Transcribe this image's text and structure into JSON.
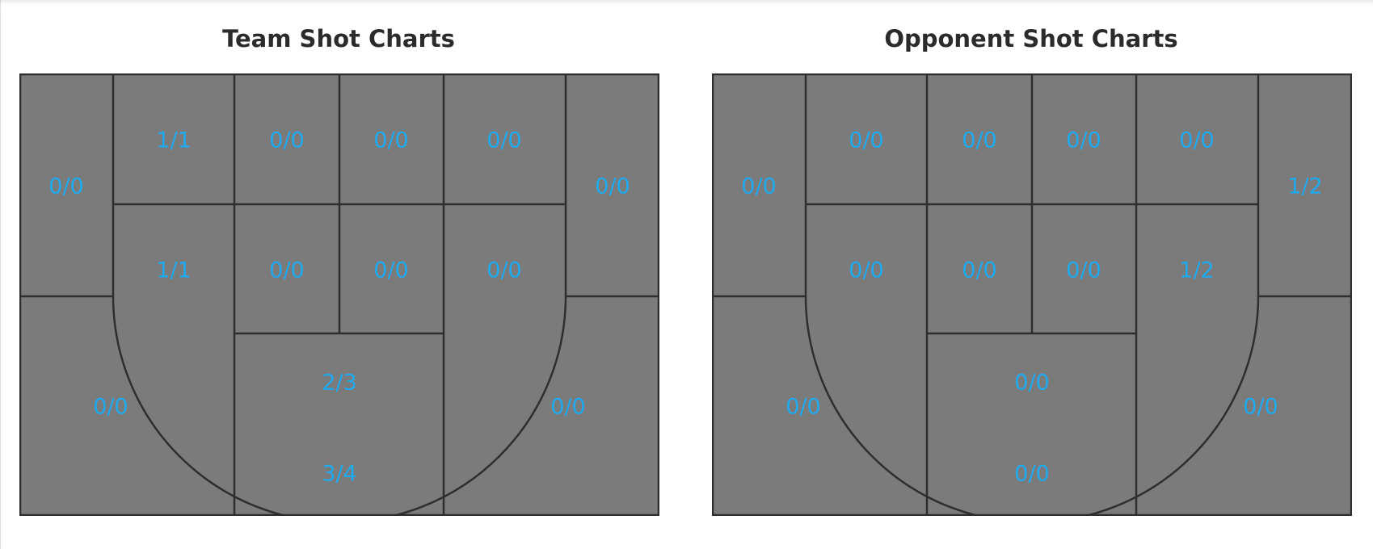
{
  "colors": {
    "court_fill": "#7b7b7b",
    "court_line": "#2e2e2e",
    "label": "#1eaaf1",
    "title": "#2b2b2b"
  },
  "team": {
    "title": "Team Shot Charts",
    "zones": {
      "left_corner_top": "0/0",
      "top_1": "1/1",
      "top_2": "0/0",
      "top_3": "0/0",
      "top_4": "0/0",
      "right_corner_top": "0/0",
      "mid_left": "1/1",
      "mid_center_left": "0/0",
      "mid_center_right": "0/0",
      "mid_right": "0/0",
      "paint_top": "2/3",
      "paint_bottom": "3/4",
      "left_corner_bottom": "0/0",
      "right_corner_bottom": "0/0"
    }
  },
  "opponent": {
    "title": "Opponent Shot Charts",
    "zones": {
      "left_corner_top": "0/0",
      "top_1": "0/0",
      "top_2": "0/0",
      "top_3": "0/0",
      "top_4": "0/0",
      "right_corner_top": "1/2",
      "mid_left": "0/0",
      "mid_center_left": "0/0",
      "mid_center_right": "0/0",
      "mid_right": "1/2",
      "paint_top": "0/0",
      "paint_bottom": "0/0",
      "left_corner_bottom": "0/0",
      "right_corner_bottom": "0/0"
    }
  }
}
